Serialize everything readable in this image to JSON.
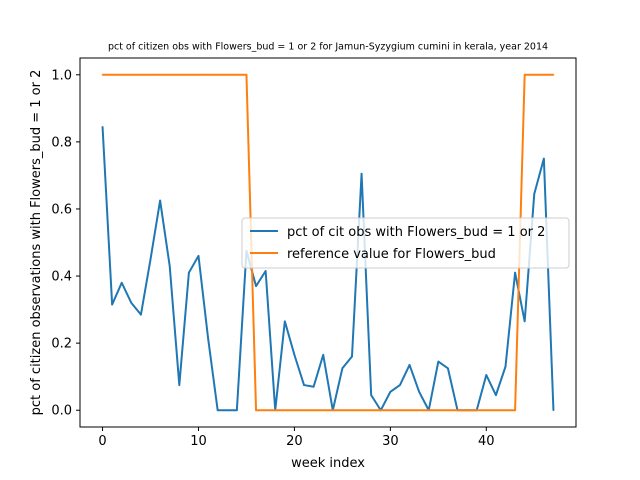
{
  "chart_data": {
    "type": "line",
    "title": "pct of citizen obs with Flowers_bud = 1 or 2 for Jamun-Syzygium cumini in kerala, year 2014",
    "xlabel": "week index",
    "ylabel": "pct of citizen observations with Flowers_bud = 1 or 2",
    "xlim": [
      -2.35,
      49.35
    ],
    "ylim": [
      -0.05,
      1.05
    ],
    "xticks": [
      0,
      10,
      20,
      30,
      40
    ],
    "yticks": [
      0.0,
      0.2,
      0.4,
      0.6,
      0.8,
      1.0
    ],
    "ytick_labels": [
      "0.0",
      "0.2",
      "0.4",
      "0.6",
      "0.8",
      "1.0"
    ],
    "legend_position": "center-right",
    "x": [
      0,
      1,
      2,
      3,
      4,
      5,
      6,
      7,
      8,
      9,
      10,
      11,
      12,
      13,
      14,
      15,
      16,
      17,
      18,
      19,
      20,
      21,
      22,
      23,
      24,
      25,
      26,
      27,
      28,
      29,
      30,
      31,
      32,
      33,
      34,
      35,
      36,
      37,
      38,
      39,
      40,
      41,
      42,
      43,
      44,
      45,
      46,
      47
    ],
    "series": [
      {
        "name": "pct of cit obs with Flowers_bud = 1 or 2",
        "color": "#1f77b4",
        "values": [
          0.845,
          0.315,
          0.38,
          0.32,
          0.285,
          0.45,
          0.625,
          0.43,
          0.075,
          0.41,
          0.46,
          0.215,
          0.0,
          0.0,
          0.0,
          0.475,
          0.37,
          0.415,
          0.0,
          0.265,
          0.165,
          0.075,
          0.07,
          0.165,
          0.0,
          0.125,
          0.16,
          0.705,
          0.045,
          0.0,
          0.055,
          0.075,
          0.135,
          0.055,
          0.0,
          0.145,
          0.125,
          0.0,
          0.0,
          0.0,
          0.105,
          0.045,
          0.13,
          0.41,
          0.265,
          0.645,
          0.75,
          0.0
        ]
      },
      {
        "name": "reference value for Flowers_bud",
        "color": "#ff7f0e",
        "values": [
          1,
          1,
          1,
          1,
          1,
          1,
          1,
          1,
          1,
          1,
          1,
          1,
          1,
          1,
          1,
          1,
          0,
          0,
          0,
          0,
          0,
          0,
          0,
          0,
          0,
          0,
          0,
          0,
          0,
          0,
          0,
          0,
          0,
          0,
          0,
          0,
          0,
          0,
          0,
          0,
          0,
          0,
          0,
          0,
          1,
          1,
          1,
          1
        ]
      }
    ]
  }
}
